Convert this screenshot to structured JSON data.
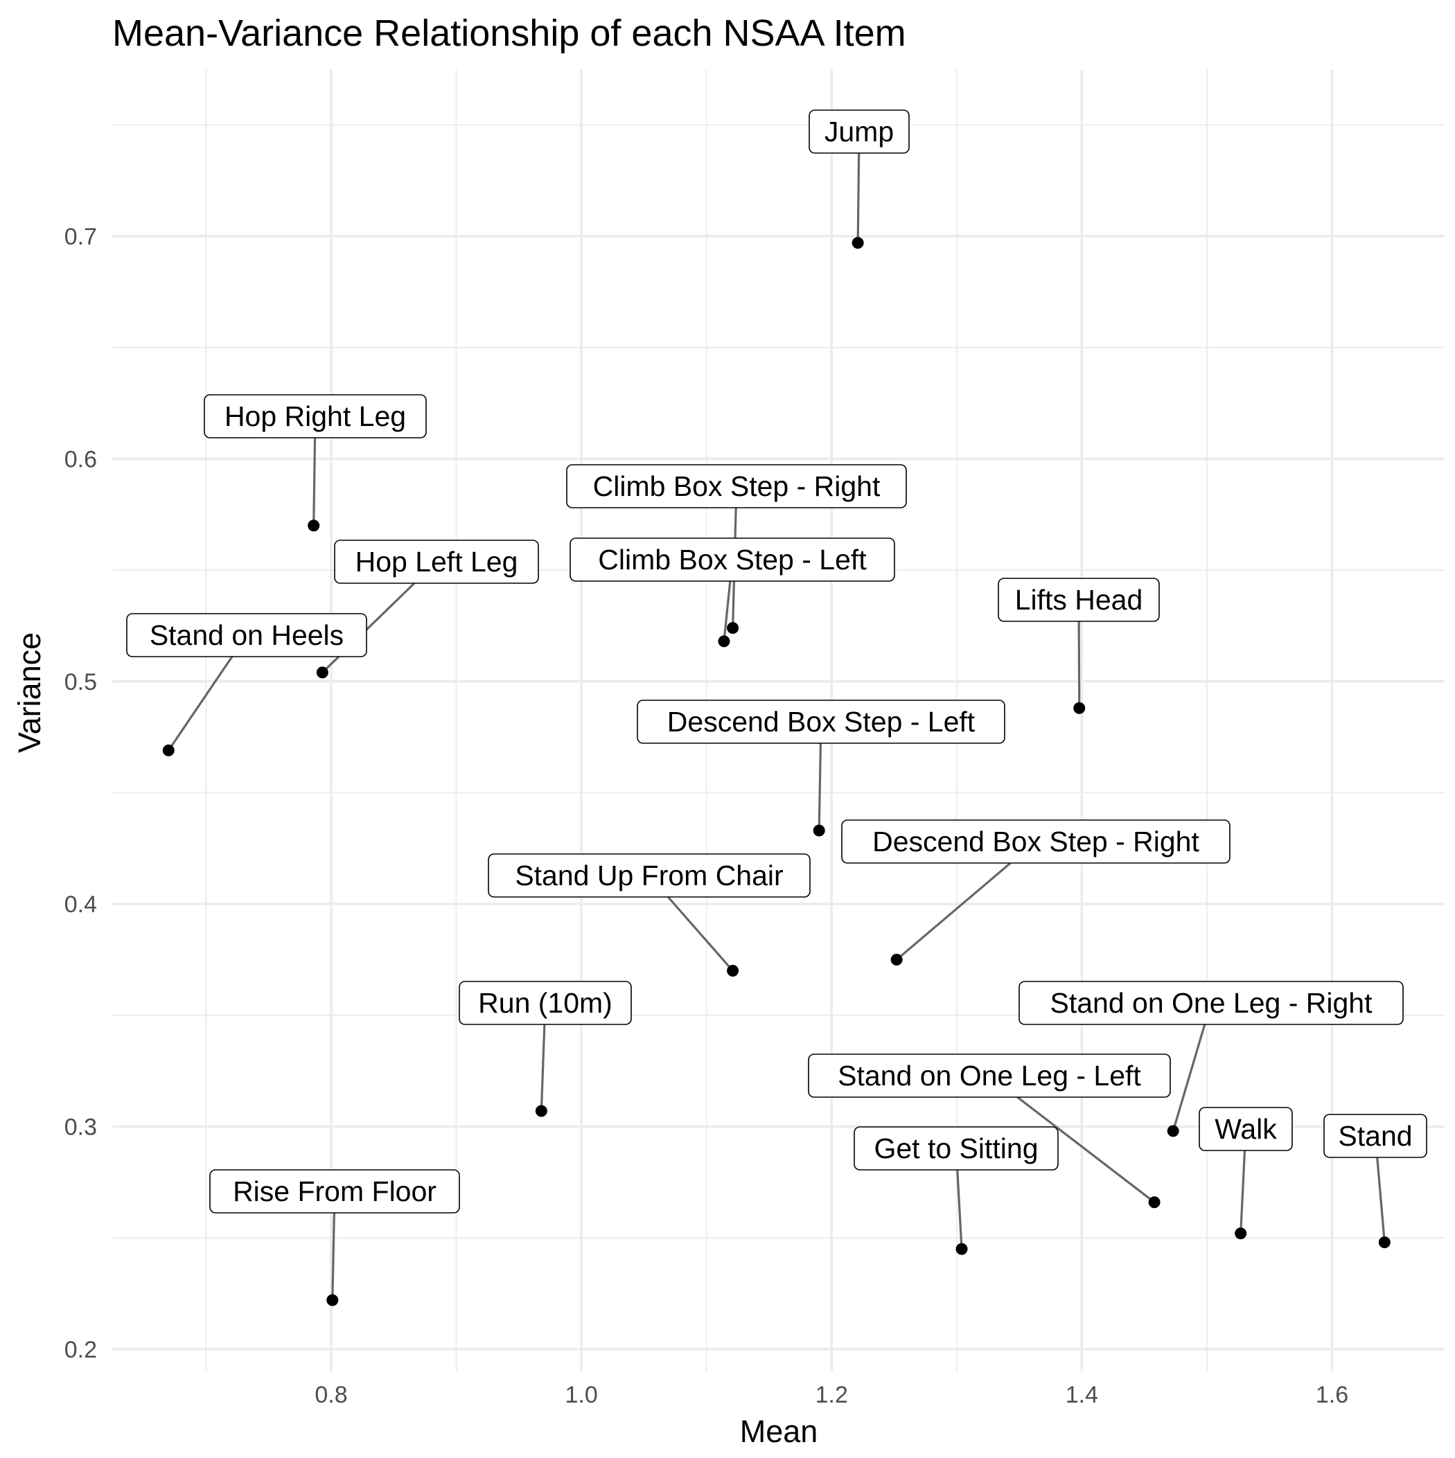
{
  "chart_data": {
    "type": "scatter",
    "title": "Mean-Variance Relationship of each NSAA Item",
    "xlabel": "Mean",
    "ylabel": "Variance",
    "xlim": [
      0.625,
      1.69
    ],
    "ylim": [
      0.19,
      0.775
    ],
    "x_ticks": [
      0.8,
      1.0,
      1.2,
      1.4,
      1.6
    ],
    "x_tick_labels": [
      "0.8",
      "1.0",
      "1.2",
      "1.4",
      "1.6"
    ],
    "y_ticks": [
      0.2,
      0.3,
      0.4,
      0.5,
      0.6,
      0.7
    ],
    "y_tick_labels": [
      "0.2",
      "0.3",
      "0.4",
      "0.5",
      "0.6",
      "0.7"
    ],
    "grid": true,
    "legend": "none",
    "points": [
      {
        "label": "Jump",
        "x": 1.221,
        "y": 0.697
      },
      {
        "label": "Hop Right Leg",
        "x": 0.786,
        "y": 0.57
      },
      {
        "label": "Climb Box Step - Right",
        "x": 1.121,
        "y": 0.524
      },
      {
        "label": "Climb Box Step - Left",
        "x": 1.114,
        "y": 0.518
      },
      {
        "label": "Hop Left Leg",
        "x": 0.793,
        "y": 0.504
      },
      {
        "label": "Lifts Head",
        "x": 1.398,
        "y": 0.488
      },
      {
        "label": "Stand on Heels",
        "x": 0.67,
        "y": 0.469
      },
      {
        "label": "Descend Box Step - Left",
        "x": 1.19,
        "y": 0.433
      },
      {
        "label": "Descend Box Step - Right",
        "x": 1.252,
        "y": 0.375
      },
      {
        "label": "Stand Up From Chair",
        "x": 1.121,
        "y": 0.37
      },
      {
        "label": "Run (10m)",
        "x": 0.968,
        "y": 0.307
      },
      {
        "label": "Stand on One Leg - Right",
        "x": 1.473,
        "y": 0.298
      },
      {
        "label": "Stand on One Leg - Left",
        "x": 1.458,
        "y": 0.266
      },
      {
        "label": "Walk",
        "x": 1.527,
        "y": 0.252
      },
      {
        "label": "Stand",
        "x": 1.642,
        "y": 0.248
      },
      {
        "label": "Get to Sitting",
        "x": 1.304,
        "y": 0.245
      },
      {
        "label": "Rise From Floor",
        "x": 0.801,
        "y": 0.222
      }
    ]
  }
}
